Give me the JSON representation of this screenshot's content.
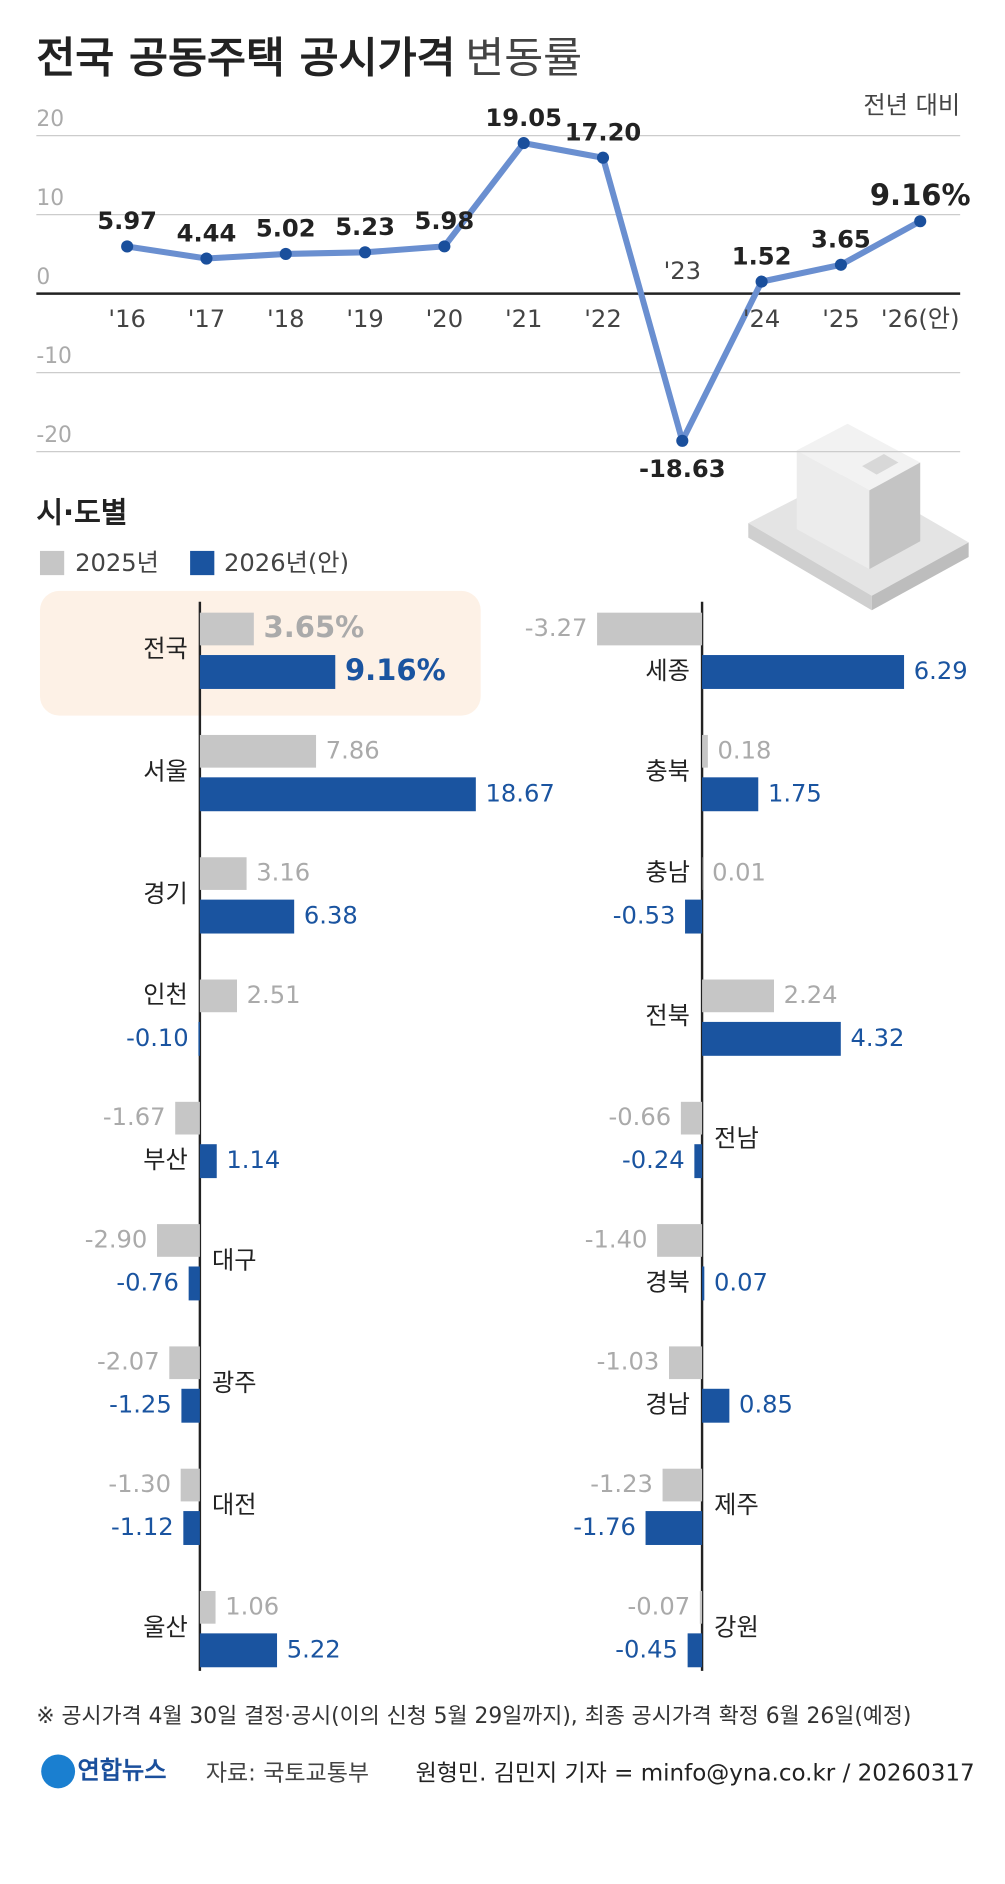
{
  "chart_data": [
    {
      "type": "line",
      "title": "전국 공동주택 공시가격",
      "subtitle": "변동률",
      "note": "전년 대비",
      "categories": [
        "'16",
        "'17",
        "'18",
        "'19",
        "'20",
        "'21",
        "'22",
        "'23",
        "'24",
        "'25",
        "'26(안)"
      ],
      "values": [
        5.97,
        4.44,
        5.02,
        5.23,
        5.98,
        19.05,
        17.2,
        -18.63,
        1.52,
        3.65,
        9.16
      ],
      "value_labels": [
        "5.97",
        "4.44",
        "5.02",
        "5.23",
        "5.98",
        "19.05",
        "17.20",
        "-18.63",
        "1.52",
        "3.65",
        "9.16%"
      ],
      "color": "#6a8fd0",
      "ylim": [
        -20,
        20
      ],
      "yticks": [
        20,
        10,
        0,
        -10,
        -20
      ],
      "grid": true
    },
    {
      "type": "bar",
      "title": "시·도별",
      "xlim": [
        -10,
        19
      ],
      "categories": [
        "전국",
        "서울",
        "경기",
        "인천",
        "부산",
        "대구",
        "광주",
        "대전",
        "울산"
      ],
      "series": [
        {
          "name": "2025년",
          "color": "#c6c6c6",
          "values": [
            3.65,
            7.86,
            3.16,
            2.51,
            -1.67,
            -2.9,
            -2.07,
            -1.3,
            1.06
          ],
          "value_labels": [
            "3.65%",
            "7.86",
            "3.16",
            "2.51",
            "-1.67",
            "-2.90",
            "-2.07",
            "-1.30",
            "1.06"
          ]
        },
        {
          "name": "2026년(안)",
          "color": "#1a54a0",
          "values": [
            9.16,
            18.67,
            6.38,
            -0.1,
            1.14,
            -0.76,
            -1.25,
            -1.12,
            5.22
          ],
          "value_labels": [
            "9.16%",
            "18.67",
            "6.38",
            "-0.10",
            "1.14",
            "-0.76",
            "-1.25",
            "-1.12",
            "5.22"
          ]
        }
      ]
    },
    {
      "type": "bar",
      "xlim": [
        -3.5,
        8
      ],
      "categories": [
        "세종",
        "충북",
        "충남",
        "전북",
        "전남",
        "경북",
        "경남",
        "제주",
        "강원"
      ],
      "series": [
        {
          "color": "#c6c6c6",
          "values": [
            -3.27,
            0.18,
            0.01,
            2.24,
            -0.66,
            -1.4,
            -1.03,
            -1.23,
            -0.07
          ],
          "value_labels": [
            "-3.27",
            "0.18",
            "0.01",
            "2.24",
            "-0.66",
            "-1.40",
            "-1.03",
            "-1.23",
            "-0.07"
          ]
        },
        {
          "color": "#1a54a0",
          "values": [
            6.29,
            1.75,
            -0.53,
            4.32,
            -0.24,
            0.07,
            0.85,
            -1.76,
            -0.45
          ],
          "value_labels": [
            "6.29",
            "1.75",
            "-0.53",
            "4.32",
            "-0.24",
            "0.07",
            "0.85",
            "-1.76",
            "-0.45"
          ]
        }
      ]
    }
  ],
  "footer": {
    "note": "※ 공시가격 4월 30일 결정·공시(이의 신청 5월 29일까지), 최종 공시가격 확정 6월 26일(예정)",
    "logo": "연합뉴스",
    "source": "자료: 국토교통부",
    "credit": "원형민. 김민지 기자 = minfo@yna.co.kr / 20260317"
  }
}
